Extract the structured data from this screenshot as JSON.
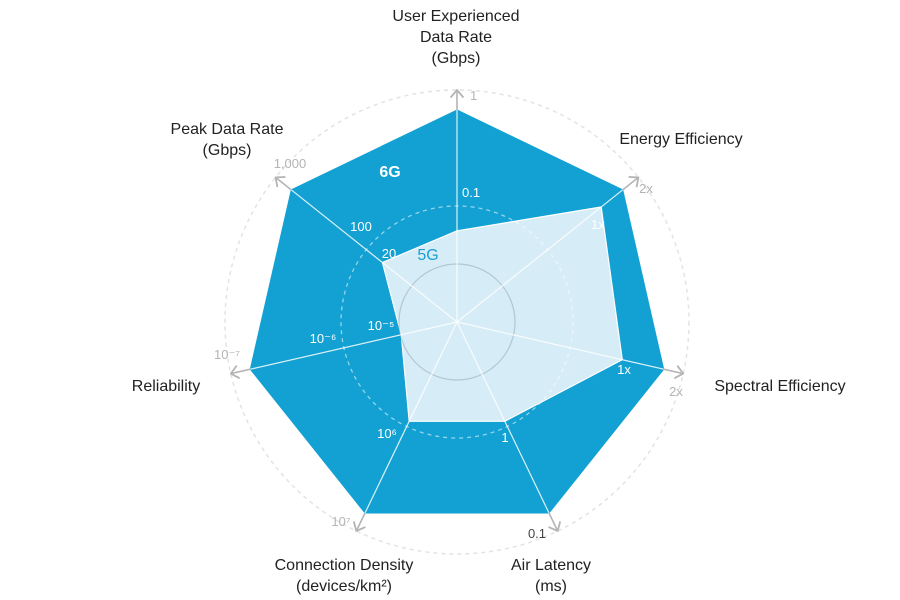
{
  "chart_data": {
    "type": "radar",
    "title": "",
    "axes": [
      {
        "name": "User Experienced Data Rate (Gbps)",
        "label_lines": [
          "User Experienced",
          "Data Rate",
          "(Gbps)"
        ],
        "tick_5g": "0.1",
        "tick_6g": "1",
        "tick_5g_norm": 0.43,
        "tick_6g_norm": 1.0
      },
      {
        "name": "Energy Efficiency",
        "label_lines": [
          "Energy Efficiency"
        ],
        "tick_5g": "1x",
        "tick_6g": "2x",
        "tick_5g_norm": 0.87,
        "tick_6g_norm": 1.0
      },
      {
        "name": "Spectral Efficiency",
        "label_lines": [
          "Spectral Efficiency"
        ],
        "tick_5g": "1x",
        "tick_6g": "2x",
        "tick_5g_norm": 0.8,
        "tick_6g_norm": 1.0
      },
      {
        "name": "Air Latency (ms)",
        "label_lines": [
          "Air Latency",
          "(ms)"
        ],
        "tick_5g": "1",
        "tick_6g": "0.1",
        "tick_5g_norm": 0.52,
        "tick_6g_norm": 1.0
      },
      {
        "name": "Connection Density (devices/km²)",
        "label_lines": [
          "Connection Density",
          "(devices/km²)"
        ],
        "tick_5g": "10⁶",
        "tick_6g": "10⁷",
        "tick_5g_norm": 0.52,
        "tick_6g_norm": 1.0
      },
      {
        "name": "Reliability",
        "label_lines": [
          "Reliability"
        ],
        "tick_5g": "10⁻⁵",
        "tick_6g": "10⁻⁷",
        "tick_mid": "10⁻⁶",
        "tick_5g_norm": 0.27,
        "tick_6g_norm": 1.0
      },
      {
        "name": "Peak Data Rate (Gbps)",
        "label_lines": [
          "Peak Data Rate",
          "(Gbps)"
        ],
        "tick_5g": "20",
        "tick_6g": "1,000",
        "tick_mid": "100",
        "tick_5g_norm": 0.45,
        "tick_6g_norm": 1.0
      }
    ],
    "series": [
      {
        "name": "6G",
        "values": [
          1.0,
          1.0,
          1.0,
          1.0,
          1.0,
          1.0,
          1.0
        ],
        "color": "#12a1d2"
      },
      {
        "name": "5G",
        "values": [
          0.43,
          0.87,
          0.8,
          0.52,
          0.52,
          0.27,
          0.45
        ],
        "color": "#d6ecf6"
      }
    ],
    "colors": {
      "fill_6g": "#12a1d2",
      "fill_5g": "#d6ecf6",
      "grid": "#d8d8d8",
      "axis_gray": "#b4b4b4"
    }
  }
}
